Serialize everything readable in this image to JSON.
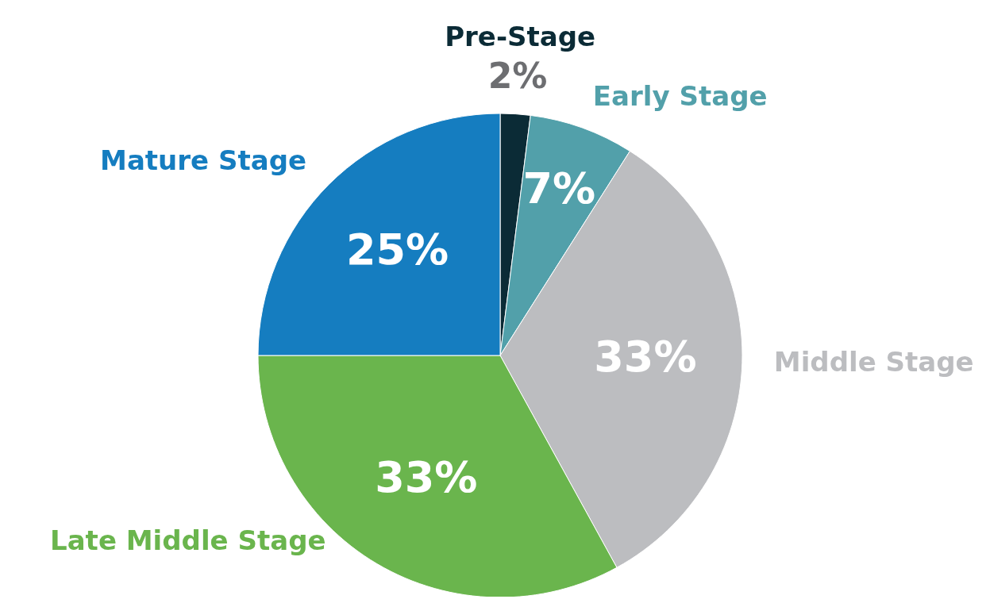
{
  "chart_data": {
    "type": "pie",
    "categories": [
      "Pre-Stage",
      "Early Stage",
      "Middle Stage",
      "Late Middle Stage",
      "Mature Stage"
    ],
    "values": [
      2,
      7,
      33,
      33,
      25
    ],
    "colors": [
      "#0b2b36",
      "#52a0aa",
      "#bcbdc0",
      "#6ab54d",
      "#157dc0"
    ],
    "value_labels": [
      "2%",
      "7%",
      "33%",
      "33%",
      "25%"
    ]
  }
}
